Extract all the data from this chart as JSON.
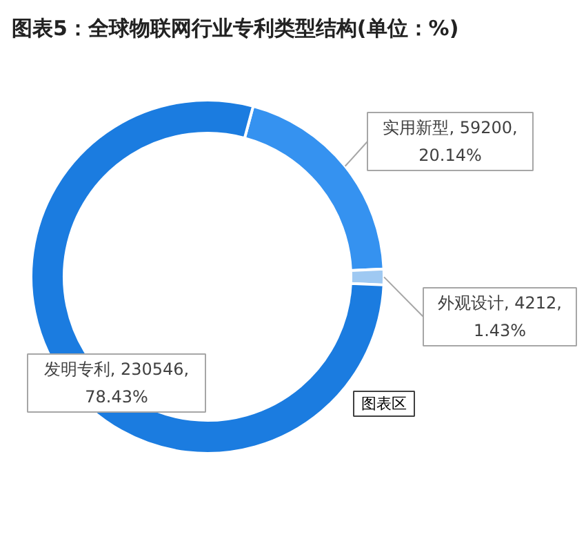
{
  "chart_data": {
    "type": "donut",
    "title": "图表5：全球物联网行业专利类型结构(单位：%)",
    "categories": [
      "实用新型",
      "外观设计",
      "发明专利"
    ],
    "values": [
      59200,
      4212,
      230546
    ],
    "colors": [
      "#3592f0",
      "#9fc9f2",
      "#1b7ce0"
    ],
    "value_labels": [
      "59200, 20.14%",
      "4212, 1.43%",
      "230546, 78.43%"
    ],
    "annotations": [
      "图表区"
    ]
  }
}
